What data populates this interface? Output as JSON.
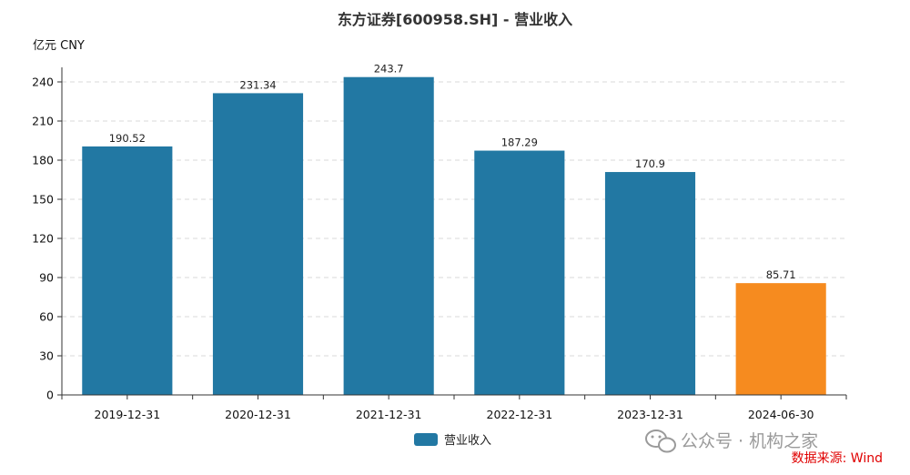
{
  "chart_data": {
    "type": "bar",
    "title": "东方证券[600958.SH] - 营业收入",
    "ylabel": "亿元  CNY",
    "xlabel": "",
    "categories": [
      "2019-12-31",
      "2020-12-31",
      "2021-12-31",
      "2022-12-31",
      "2023-12-31",
      "2024-06-30"
    ],
    "series": [
      {
        "name": "营业收入",
        "values": [
          190.52,
          231.34,
          243.7,
          187.29,
          170.9,
          85.71
        ],
        "data_labels": [
          "190.52",
          "231.34",
          "243.7",
          "187.29",
          "170.9",
          "85.71"
        ]
      }
    ],
    "ylim": [
      0,
      240
    ],
    "yticks": [
      0,
      30,
      60,
      90,
      120,
      150,
      180,
      210,
      240
    ],
    "grid": true,
    "legend_position": "bottom-center",
    "colors": {
      "primary": "#2278a3",
      "highlight": "#f68b1f",
      "grid": "#d9d9d9",
      "axis": "#333333"
    },
    "highlight_index": 5
  },
  "watermark": {
    "text": "公众号 · 机构之家",
    "icon": "wechat-icon"
  },
  "source": "数据来源: Wind"
}
